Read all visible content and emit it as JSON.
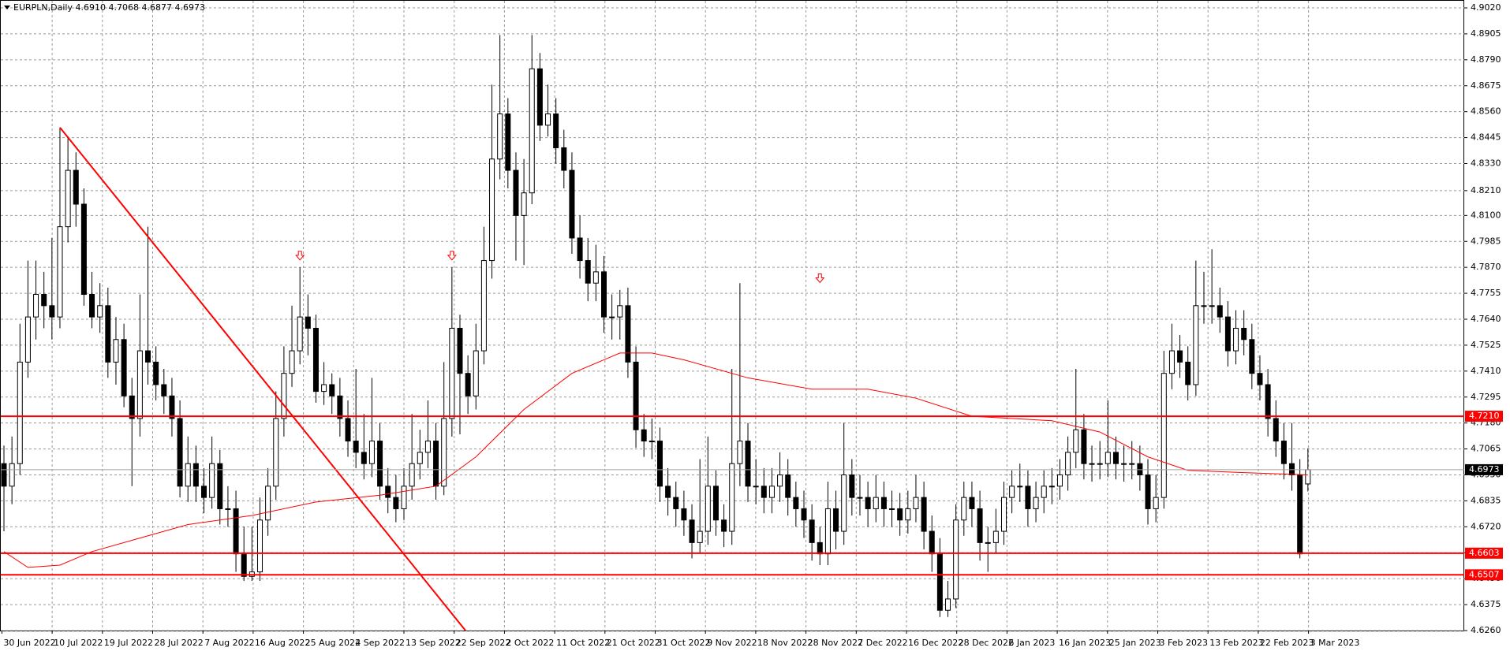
{
  "header": {
    "symbol": "EURPLN,Daily",
    "ohlc": [
      "4.6910",
      "4.7068",
      "4.6877",
      "4.6973"
    ]
  },
  "chart_data": {
    "type": "candlestick",
    "grid": true,
    "bull_color": "#ffffff",
    "bear_color": "#000000",
    "date_labels": [
      "30 Jun 2022",
      "10 Jul 2022",
      "19 Jul 2022",
      "28 Jul 2022",
      "7 Aug 2022",
      "16 Aug 2022",
      "25 Aug 2022",
      "4 Sep 2022",
      "13 Sep 2022",
      "22 Sep 2022",
      "2 Oct 2022",
      "11 Oct 2022",
      "21 Oct 2022",
      "31 Oct 2022",
      "9 Nov 2022",
      "18 Nov 2022",
      "28 Nov 2022",
      "7 Dec 2022",
      "16 Dec 2022",
      "28 Dec 2022",
      "6 Jan 2023",
      "16 Jan 2023",
      "25 Jan 2023",
      "3 Feb 2023",
      "13 Feb 2023",
      "22 Feb 2023",
      "3 Mar 2023"
    ],
    "ylim": [
      4.626,
      4.902
    ],
    "yticks": [
      {
        "value": 4.902,
        "label": "4.9020"
      },
      {
        "value": 4.8905,
        "label": "4.8905"
      },
      {
        "value": 4.879,
        "label": "4.8790"
      },
      {
        "value": 4.8675,
        "label": "4.8675"
      },
      {
        "value": 4.856,
        "label": "4.8560"
      },
      {
        "value": 4.8445,
        "label": "4.8445"
      },
      {
        "value": 4.833,
        "label": "4.8330"
      },
      {
        "value": 4.821,
        "label": "4.8210"
      },
      {
        "value": 4.81,
        "label": "4.8100"
      },
      {
        "value": 4.7985,
        "label": "4.7985"
      },
      {
        "value": 4.787,
        "label": "4.7870"
      },
      {
        "value": 4.7755,
        "label": "4.7755"
      },
      {
        "value": 4.764,
        "label": "4.7640"
      },
      {
        "value": 4.7525,
        "label": "4.7525"
      },
      {
        "value": 4.741,
        "label": "4.7410"
      },
      {
        "value": 4.7295,
        "label": "4.7295"
      },
      {
        "value": 4.718,
        "label": "4.7180"
      },
      {
        "value": 4.7065,
        "label": "4.7065"
      },
      {
        "value": 4.695,
        "label": "4.6950"
      },
      {
        "value": 4.6835,
        "label": "4.6835"
      },
      {
        "value": 4.672,
        "label": "4.6720"
      },
      {
        "value": 4.6605,
        "label": "4.6605"
      },
      {
        "value": 4.649,
        "label": "4.6490"
      },
      {
        "value": 4.6375,
        "label": "4.6375"
      },
      {
        "value": 4.626,
        "label": "4.6260"
      }
    ],
    "levels": [
      {
        "value": 4.721,
        "label": "4.7210",
        "color": "#ff0000"
      },
      {
        "value": 4.6603,
        "label": "4.6603",
        "color": "#ff0000"
      },
      {
        "value": 4.6507,
        "label": "4.6507",
        "color": "#ff0000"
      }
    ],
    "last_price": {
      "value": 4.6973,
      "label": "4.6973",
      "color": "#000000"
    },
    "ma": {
      "color": "#ff0000",
      "x": [
        0,
        3,
        7,
        11,
        17,
        23,
        31,
        39,
        47,
        54,
        59,
        65,
        71,
        77,
        81,
        85,
        93,
        101,
        108,
        114,
        121,
        131,
        137,
        143,
        148,
        155,
        163
      ],
      "values": [
        4.661,
        4.654,
        4.655,
        4.661,
        4.667,
        4.673,
        4.677,
        4.683,
        4.686,
        4.69,
        4.703,
        4.724,
        4.74,
        4.749,
        4.749,
        4.746,
        4.738,
        4.733,
        4.733,
        4.729,
        4.721,
        4.719,
        4.714,
        4.703,
        4.697,
        4.696,
        4.695
      ]
    },
    "trendline": {
      "color": "#ff0000",
      "points": [
        [
          7,
          4.849
        ],
        [
          57.7,
          4.626
        ]
      ]
    },
    "arrows": {
      "color": "#ff0000",
      "x": [
        37,
        56,
        102
      ],
      "values": [
        4.792,
        4.792,
        4.782
      ]
    },
    "candles": [
      [
        4.7,
        4.708,
        4.67,
        4.69
      ],
      [
        4.69,
        4.712,
        4.682,
        4.7
      ],
      [
        4.7,
        4.762,
        4.695,
        4.745
      ],
      [
        4.745,
        4.79,
        4.738,
        4.765
      ],
      [
        4.765,
        4.79,
        4.755,
        4.775
      ],
      [
        4.775,
        4.785,
        4.76,
        4.77
      ],
      [
        4.77,
        4.8,
        4.755,
        4.765
      ],
      [
        4.765,
        4.849,
        4.76,
        4.805
      ],
      [
        4.805,
        4.845,
        4.798,
        4.83
      ],
      [
        4.83,
        4.838,
        4.805,
        4.815
      ],
      [
        4.815,
        4.822,
        4.77,
        4.775
      ],
      [
        4.775,
        4.785,
        4.76,
        4.765
      ],
      [
        4.765,
        4.78,
        4.758,
        4.77
      ],
      [
        4.77,
        4.778,
        4.738,
        4.745
      ],
      [
        4.745,
        4.765,
        4.735,
        4.755
      ],
      [
        4.755,
        4.762,
        4.725,
        4.73
      ],
      [
        4.73,
        4.738,
        4.69,
        4.72
      ],
      [
        4.72,
        4.775,
        4.712,
        4.75
      ],
      [
        4.75,
        4.805,
        4.735,
        4.745
      ],
      [
        4.745,
        4.752,
        4.728,
        4.735
      ],
      [
        4.735,
        4.742,
        4.722,
        4.73
      ],
      [
        4.73,
        4.738,
        4.712,
        4.72
      ],
      [
        4.72,
        4.728,
        4.685,
        4.69
      ],
      [
        4.69,
        4.712,
        4.683,
        4.7
      ],
      [
        4.7,
        4.708,
        4.683,
        4.69
      ],
      [
        4.69,
        4.698,
        4.678,
        4.685
      ],
      [
        4.685,
        4.712,
        4.68,
        4.7
      ],
      [
        4.7,
        4.706,
        4.673,
        4.68
      ],
      [
        4.68,
        4.69,
        4.672,
        4.68
      ],
      [
        4.68,
        4.688,
        4.652,
        4.66
      ],
      [
        4.66,
        4.672,
        4.648,
        4.65
      ],
      [
        4.65,
        4.672,
        4.648,
        4.652
      ],
      [
        4.652,
        4.685,
        4.648,
        4.675
      ],
      [
        4.675,
        4.698,
        4.668,
        4.69
      ],
      [
        4.69,
        4.732,
        4.684,
        4.72
      ],
      [
        4.72,
        4.752,
        4.712,
        4.74
      ],
      [
        4.74,
        4.77,
        4.734,
        4.75
      ],
      [
        4.75,
        4.787,
        4.744,
        4.765
      ],
      [
        4.765,
        4.775,
        4.748,
        4.76
      ],
      [
        4.76,
        4.766,
        4.727,
        4.732
      ],
      [
        4.732,
        4.745,
        4.726,
        4.735
      ],
      [
        4.735,
        4.74,
        4.722,
        4.73
      ],
      [
        4.73,
        4.738,
        4.712,
        4.72
      ],
      [
        4.72,
        4.728,
        4.703,
        4.71
      ],
      [
        4.71,
        4.742,
        4.698,
        4.705
      ],
      [
        4.705,
        4.722,
        4.693,
        4.7
      ],
      [
        4.7,
        4.738,
        4.694,
        4.71
      ],
      [
        4.71,
        4.718,
        4.684,
        4.69
      ],
      [
        4.69,
        4.698,
        4.678,
        4.685
      ],
      [
        4.685,
        4.695,
        4.674,
        4.68
      ],
      [
        4.68,
        4.698,
        4.675,
        4.69
      ],
      [
        4.69,
        4.722,
        4.684,
        4.7
      ],
      [
        4.7,
        4.715,
        4.693,
        4.705
      ],
      [
        4.705,
        4.728,
        4.698,
        4.71
      ],
      [
        4.71,
        4.718,
        4.684,
        4.69
      ],
      [
        4.69,
        4.745,
        4.686,
        4.72
      ],
      [
        4.72,
        4.787,
        4.712,
        4.76
      ],
      [
        4.76,
        4.766,
        4.713,
        4.74
      ],
      [
        4.74,
        4.748,
        4.722,
        4.73
      ],
      [
        4.73,
        4.762,
        4.724,
        4.75
      ],
      [
        4.75,
        4.805,
        4.744,
        4.79
      ],
      [
        4.79,
        4.868,
        4.782,
        4.835
      ],
      [
        4.835,
        4.89,
        4.826,
        4.855
      ],
      [
        4.855,
        4.862,
        4.822,
        4.83
      ],
      [
        4.83,
        4.838,
        4.79,
        4.81
      ],
      [
        4.81,
        4.835,
        4.788,
        4.82
      ],
      [
        4.82,
        4.89,
        4.815,
        4.875
      ],
      [
        4.875,
        4.882,
        4.843,
        4.85
      ],
      [
        4.85,
        4.868,
        4.845,
        4.855
      ],
      [
        4.855,
        4.862,
        4.833,
        4.84
      ],
      [
        4.84,
        4.848,
        4.822,
        4.83
      ],
      [
        4.83,
        4.838,
        4.793,
        4.8
      ],
      [
        4.8,
        4.81,
        4.782,
        4.79
      ],
      [
        4.79,
        4.8,
        4.772,
        4.78
      ],
      [
        4.78,
        4.797,
        4.772,
        4.785
      ],
      [
        4.785,
        4.792,
        4.758,
        4.765
      ],
      [
        4.765,
        4.775,
        4.755,
        4.765
      ],
      [
        4.765,
        4.777,
        4.755,
        4.77
      ],
      [
        4.77,
        4.778,
        4.738,
        4.745
      ],
      [
        4.745,
        4.752,
        4.707,
        4.715
      ],
      [
        4.715,
        4.722,
        4.703,
        4.71
      ],
      [
        4.71,
        4.72,
        4.702,
        4.71
      ],
      [
        4.71,
        4.716,
        4.683,
        4.69
      ],
      [
        4.69,
        4.698,
        4.677,
        4.685
      ],
      [
        4.685,
        4.692,
        4.672,
        4.68
      ],
      [
        4.68,
        4.688,
        4.668,
        4.675
      ],
      [
        4.675,
        4.682,
        4.658,
        4.665
      ],
      [
        4.665,
        4.702,
        4.66,
        4.67
      ],
      [
        4.67,
        4.712,
        4.664,
        4.69
      ],
      [
        4.69,
        4.697,
        4.668,
        4.675
      ],
      [
        4.675,
        4.682,
        4.663,
        4.67
      ],
      [
        4.67,
        4.742,
        4.664,
        4.7
      ],
      [
        4.7,
        4.78,
        4.69,
        4.71
      ],
      [
        4.71,
        4.718,
        4.683,
        4.69
      ],
      [
        4.69,
        4.702,
        4.682,
        4.69
      ],
      [
        4.69,
        4.698,
        4.678,
        4.685
      ],
      [
        4.685,
        4.698,
        4.678,
        4.69
      ],
      [
        4.69,
        4.705,
        4.683,
        4.695
      ],
      [
        4.695,
        4.702,
        4.677,
        4.685
      ],
      [
        4.685,
        4.692,
        4.672,
        4.68
      ],
      [
        4.68,
        4.688,
        4.667,
        4.675
      ],
      [
        4.675,
        4.682,
        4.657,
        4.665
      ],
      [
        4.665,
        4.672,
        4.655,
        4.66
      ],
      [
        4.66,
        4.692,
        4.655,
        4.68
      ],
      [
        4.68,
        4.688,
        4.662,
        4.67
      ],
      [
        4.67,
        4.718,
        4.664,
        4.695
      ],
      [
        4.695,
        4.702,
        4.677,
        4.685
      ],
      [
        4.685,
        4.695,
        4.677,
        4.685
      ],
      [
        4.685,
        4.692,
        4.672,
        4.68
      ],
      [
        4.68,
        4.695,
        4.674,
        4.685
      ],
      [
        4.685,
        4.692,
        4.672,
        4.68
      ],
      [
        4.68,
        4.688,
        4.672,
        4.68
      ],
      [
        4.68,
        4.687,
        4.668,
        4.675
      ],
      [
        4.675,
        4.688,
        4.669,
        4.68
      ],
      [
        4.68,
        4.695,
        4.674,
        4.685
      ],
      [
        4.685,
        4.692,
        4.662,
        4.67
      ],
      [
        4.67,
        4.677,
        4.652,
        4.66
      ],
      [
        4.66,
        4.667,
        4.632,
        4.635
      ],
      [
        4.635,
        4.648,
        4.632,
        4.64
      ],
      [
        4.64,
        4.682,
        4.636,
        4.675
      ],
      [
        4.675,
        4.692,
        4.668,
        4.685
      ],
      [
        4.685,
        4.692,
        4.672,
        4.68
      ],
      [
        4.68,
        4.688,
        4.657,
        4.665
      ],
      [
        4.665,
        4.672,
        4.652,
        4.665
      ],
      [
        4.665,
        4.68,
        4.66,
        4.67
      ],
      [
        4.67,
        4.692,
        4.664,
        4.685
      ],
      [
        4.685,
        4.697,
        4.678,
        4.69
      ],
      [
        4.69,
        4.7,
        4.683,
        4.69
      ],
      [
        4.69,
        4.697,
        4.672,
        4.68
      ],
      [
        4.68,
        4.692,
        4.674,
        4.685
      ],
      [
        4.685,
        4.697,
        4.678,
        4.69
      ],
      [
        4.69,
        4.698,
        4.682,
        4.69
      ],
      [
        4.69,
        4.702,
        4.684,
        4.695
      ],
      [
        4.695,
        4.712,
        4.688,
        4.705
      ],
      [
        4.705,
        4.742,
        4.698,
        4.715
      ],
      [
        4.715,
        4.722,
        4.693,
        4.7
      ],
      [
        4.7,
        4.708,
        4.692,
        4.7
      ],
      [
        4.7,
        4.71,
        4.693,
        4.7
      ],
      [
        4.7,
        4.728,
        4.694,
        4.705
      ],
      [
        4.705,
        4.712,
        4.693,
        4.7
      ],
      [
        4.7,
        4.708,
        4.692,
        4.7
      ],
      [
        4.7,
        4.71,
        4.693,
        4.7
      ],
      [
        4.7,
        4.708,
        4.688,
        4.695
      ],
      [
        4.695,
        4.702,
        4.673,
        4.68
      ],
      [
        4.68,
        4.695,
        4.674,
        4.685
      ],
      [
        4.685,
        4.75,
        4.68,
        4.74
      ],
      [
        4.74,
        4.762,
        4.733,
        4.75
      ],
      [
        4.75,
        4.757,
        4.738,
        4.745
      ],
      [
        4.745,
        4.752,
        4.728,
        4.735
      ],
      [
        4.735,
        4.79,
        4.73,
        4.77
      ],
      [
        4.77,
        4.785,
        4.762,
        4.77
      ],
      [
        4.77,
        4.795,
        4.762,
        4.77
      ],
      [
        4.77,
        4.778,
        4.758,
        4.765
      ],
      [
        4.765,
        4.772,
        4.743,
        4.75
      ],
      [
        4.75,
        4.768,
        4.744,
        4.76
      ],
      [
        4.76,
        4.768,
        4.748,
        4.755
      ],
      [
        4.755,
        4.762,
        4.733,
        4.74
      ],
      [
        4.74,
        4.748,
        4.728,
        4.735
      ],
      [
        4.735,
        4.742,
        4.712,
        4.72
      ],
      [
        4.72,
        4.728,
        4.703,
        4.71
      ],
      [
        4.71,
        4.718,
        4.693,
        4.7
      ],
      [
        4.7,
        4.718,
        4.688,
        4.695
      ],
      [
        4.695,
        4.702,
        4.658,
        4.66
      ],
      [
        4.691,
        4.7068,
        4.6877,
        4.6973
      ]
    ]
  }
}
